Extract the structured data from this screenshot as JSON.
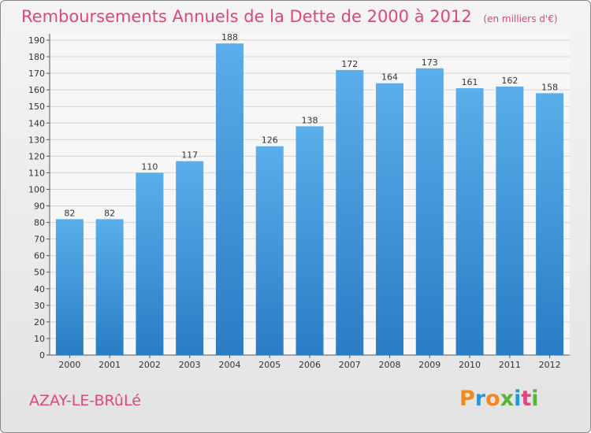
{
  "header": {
    "title": "Remboursements Annuels de la Dette de 2000 à 2012",
    "subtitle": "(en milliers d'€)"
  },
  "footer": {
    "commune": "AZAY-LE-BRûLé",
    "logo": "Proxiti"
  },
  "chart_data": {
    "type": "bar",
    "title": "Remboursements Annuels de la Dette de 2000 à 2012",
    "subtitle": "(en milliers d'€)",
    "categories": [
      "2000",
      "2001",
      "2002",
      "2003",
      "2004",
      "2005",
      "2006",
      "2007",
      "2008",
      "2009",
      "2010",
      "2011",
      "2012"
    ],
    "values": [
      82,
      82,
      110,
      117,
      188,
      126,
      138,
      172,
      164,
      173,
      161,
      162,
      158
    ],
    "xlabel": "",
    "ylabel": "",
    "ylim": [
      0,
      190
    ],
    "yticks": [
      0,
      10,
      20,
      30,
      40,
      50,
      60,
      70,
      80,
      90,
      100,
      110,
      120,
      130,
      140,
      150,
      160,
      170,
      180,
      190
    ],
    "grid": true,
    "bar_color": "#3f95dc",
    "grid_color": "#d6d6d6",
    "title_color": "#e0457b"
  }
}
